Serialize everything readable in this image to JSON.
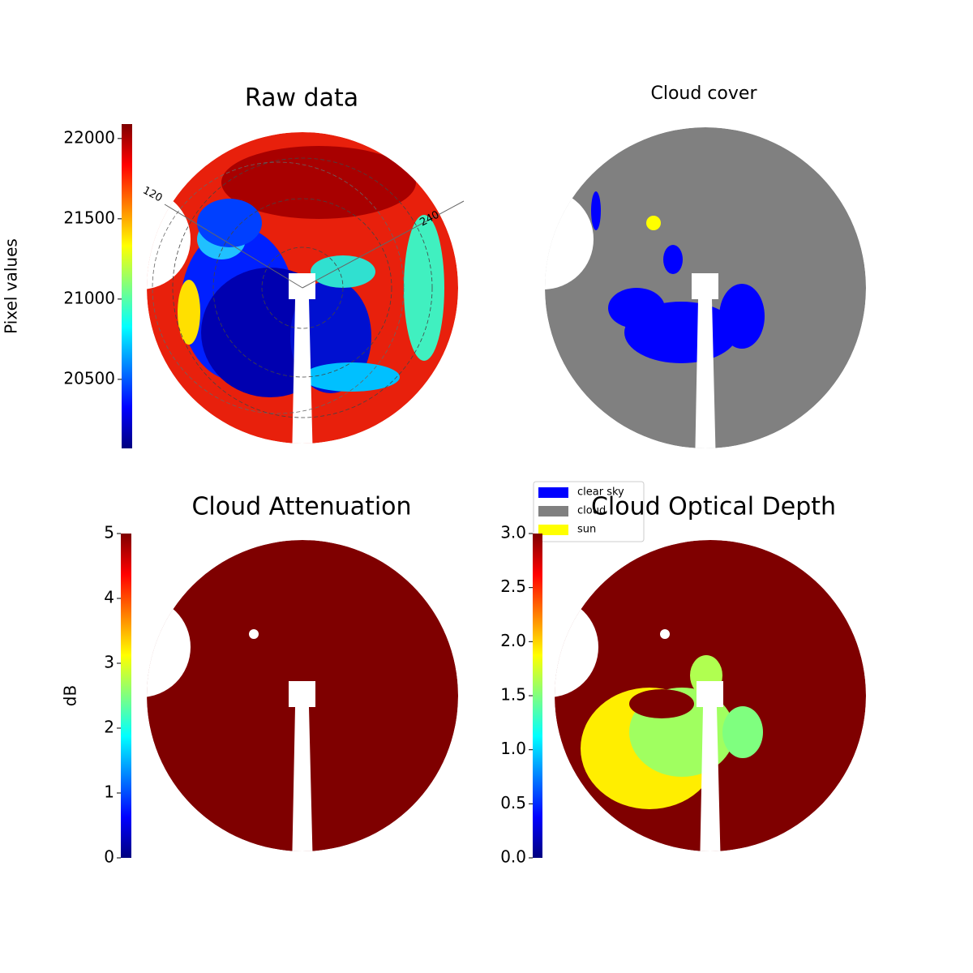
{
  "chart_data": [
    {
      "type": "heatmap",
      "title": "Raw data",
      "colorbar_label": "Pixel values",
      "colormap": "jet",
      "clim": [
        20070,
        22090
      ],
      "cticks": [
        20500,
        21000,
        21500,
        22000
      ],
      "angle_labels": [
        120,
        240
      ]
    },
    {
      "type": "categorical",
      "title": "Cloud cover",
      "legend": [
        {
          "name": "clear sky",
          "color": "#0000ff"
        },
        {
          "name": "cloud",
          "color": "#808080"
        },
        {
          "name": "sun",
          "color": "#ffff00"
        }
      ]
    },
    {
      "type": "heatmap",
      "title": "Cloud Attenuation",
      "colorbar_label": "dB",
      "colormap": "jet",
      "clim": [
        0,
        5
      ],
      "cticks": [
        0,
        1,
        2,
        3,
        4,
        5
      ]
    },
    {
      "type": "heatmap",
      "title": "Cloud Optical Depth",
      "colormap": "jet",
      "clim": [
        0,
        3
      ],
      "cticks": [
        {
          "value": 0,
          "label": "0.0"
        },
        0.5,
        {
          "value": 1,
          "label": "1.0"
        },
        1.5,
        {
          "value": 2,
          "label": "2.0"
        },
        2.5,
        {
          "value": 3,
          "label": "3.0"
        }
      ]
    }
  ]
}
